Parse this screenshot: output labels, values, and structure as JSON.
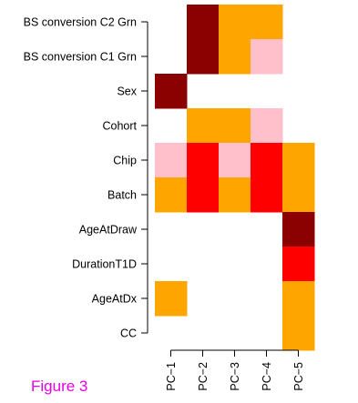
{
  "caption": "Figure 3",
  "colors": {
    "0": "#ffffff",
    "1": "#ffc0cb",
    "2": "#ffa500",
    "3": "#ff0000",
    "4": "#8b0000"
  },
  "chart_data": {
    "type": "heatmap",
    "title": "",
    "xlabel": "",
    "ylabel": "",
    "columns": [
      "PC−1",
      "PC−2",
      "PC−3",
      "PC−4",
      "PC−5"
    ],
    "rows": [
      "BS conversion C2 Grn",
      "BS conversion C1 Grn",
      "Sex",
      "Cohort",
      "Chip",
      "Batch",
      "AgeAtDraw",
      "DurationT1D",
      "AgeAtDx",
      "CC"
    ],
    "values": [
      [
        0,
        4,
        2,
        2,
        0
      ],
      [
        0,
        4,
        2,
        1,
        0
      ],
      [
        4,
        0,
        0,
        0,
        0
      ],
      [
        0,
        2,
        2,
        1,
        0
      ],
      [
        1,
        3,
        1,
        3,
        2
      ],
      [
        2,
        3,
        2,
        3,
        2
      ],
      [
        0,
        0,
        0,
        0,
        4
      ],
      [
        0,
        0,
        0,
        0,
        3
      ],
      [
        2,
        0,
        0,
        0,
        2
      ],
      [
        0,
        0,
        0,
        0,
        2
      ]
    ]
  }
}
